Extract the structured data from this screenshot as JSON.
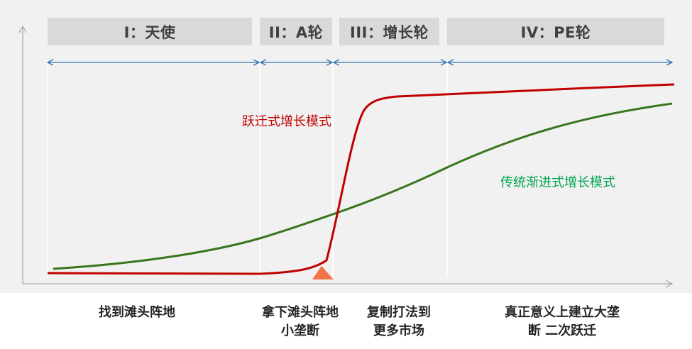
{
  "stages": [
    {
      "label": "I：天使"
    },
    {
      "label": "II：A轮"
    },
    {
      "label": "III：增长轮"
    },
    {
      "label": "IV：PE轮"
    }
  ],
  "curves": {
    "leap": {
      "label": "跃迁式增长模式",
      "color": "#c00000"
    },
    "traditional": {
      "label": "传统渐进式增长模式",
      "color": "#00a651",
      "line_color": "#38761d"
    }
  },
  "bottom_labels": [
    {
      "lines": [
        "找到滩头阵地"
      ]
    },
    {
      "lines": [
        "拿下滩头阵地",
        "小垄断"
      ]
    },
    {
      "lines": [
        "复制打法到",
        "更多市场"
      ]
    },
    {
      "lines": [
        "真正意义上建立大垄",
        "断 二次跃迁"
      ]
    }
  ],
  "colors": {
    "panel_bg": "#f1f1f1",
    "stage_bg": "#d9d9d9",
    "arrow": "#2e75b6",
    "marker": "#f4744a",
    "axis": "#a6a6a6"
  }
}
